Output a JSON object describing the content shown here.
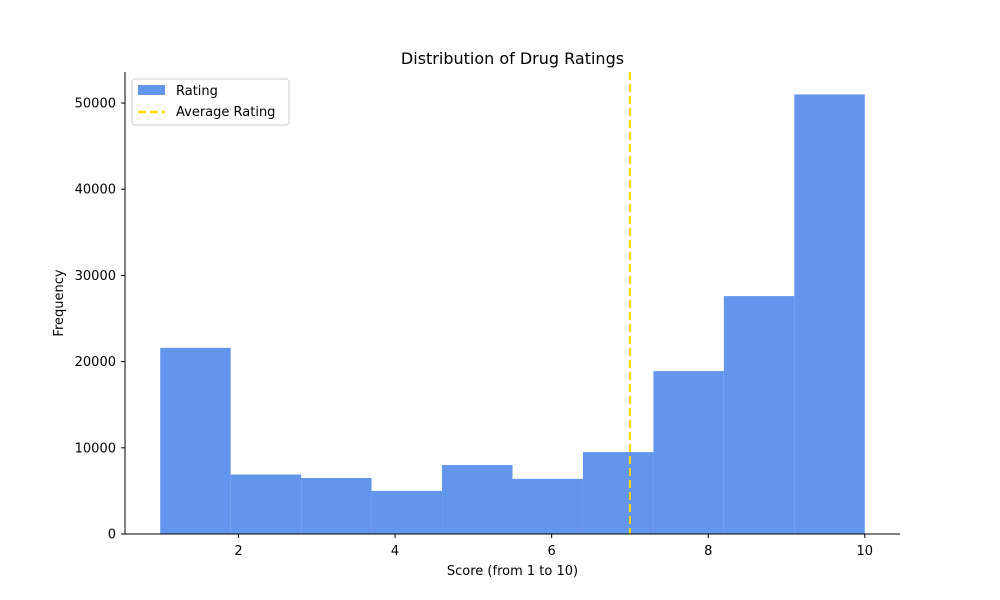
{
  "chart_data": {
    "type": "bar",
    "title": "Distribution of Drug Ratings",
    "xlabel": "Score (from 1 to 10)",
    "ylabel": "Frequency",
    "xlim": [
      0.55,
      10.45
    ],
    "ylim": [
      0,
      53600
    ],
    "xticks": [
      2,
      4,
      6,
      8,
      10
    ],
    "yticks": [
      0,
      10000,
      20000,
      30000,
      40000,
      50000
    ],
    "bins": [
      {
        "start": 1.0,
        "end": 1.9,
        "value": 21600
      },
      {
        "start": 1.9,
        "end": 2.8,
        "value": 6900
      },
      {
        "start": 2.8,
        "end": 3.7,
        "value": 6500
      },
      {
        "start": 3.7,
        "end": 4.6,
        "value": 5000
      },
      {
        "start": 4.6,
        "end": 5.5,
        "value": 8000
      },
      {
        "start": 5.5,
        "end": 6.4,
        "value": 6400
      },
      {
        "start": 6.4,
        "end": 7.3,
        "value": 9500
      },
      {
        "start": 7.3,
        "end": 8.2,
        "value": 18900
      },
      {
        "start": 8.2,
        "end": 9.1,
        "value": 27600
      },
      {
        "start": 9.1,
        "end": 10.0,
        "value": 51000
      }
    ],
    "average_line": {
      "value": 7.0
    },
    "legend": {
      "placement": "top-left",
      "entries": [
        {
          "label": "Rating",
          "kind": "patch",
          "color": "#6495ED"
        },
        {
          "label": "Average Rating",
          "kind": "dashed-line",
          "color": "#FFD700"
        }
      ]
    },
    "colors": {
      "bars": "#6495ED",
      "average_line": "#FFD700",
      "axis": "#000000"
    },
    "grid": false
  }
}
